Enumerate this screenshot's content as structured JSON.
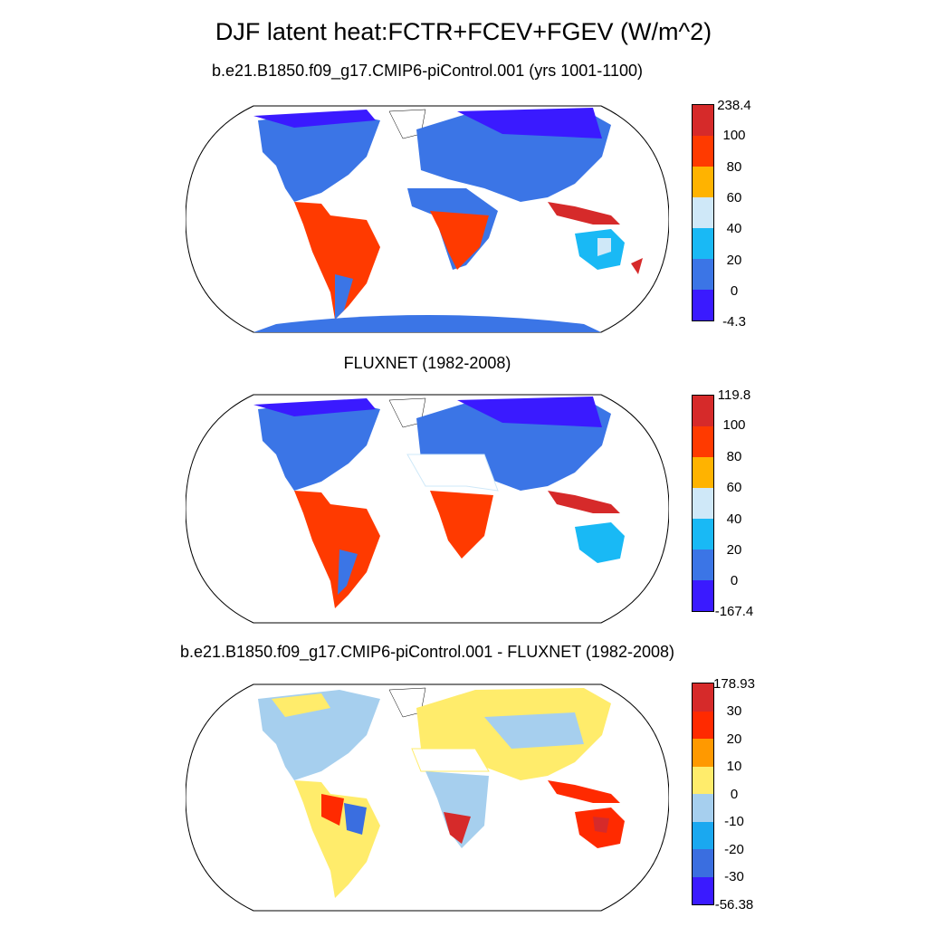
{
  "title": "DJF latent heat:FCTR+FCEV+FGEV (W/m^2)",
  "panels": [
    {
      "subtitle": "b.e21.B1850.f09_g17.CMIP6-piControl.001 (yrs 1001-1100)",
      "colorbar": {
        "labels": [
          "238.4",
          "100",
          "80",
          "60",
          "40",
          "20",
          "0",
          "-4.3"
        ],
        "colors": [
          "#d62a2a",
          "#ff3a00",
          "#ffb300",
          "#cfe8f8",
          "#19b9f5",
          "#3b75e6",
          "#3a1aff"
        ]
      }
    },
    {
      "subtitle": "FLUXNET (1982-2008)",
      "colorbar": {
        "labels": [
          "119.8",
          "100",
          "80",
          "60",
          "40",
          "20",
          "0",
          "-167.4"
        ],
        "colors": [
          "#d62a2a",
          "#ff3a00",
          "#ffb300",
          "#cfe8f8",
          "#19b9f5",
          "#3b75e6",
          "#3a1aff"
        ]
      }
    },
    {
      "subtitle": "b.e21.B1850.f09_g17.CMIP6-piControl.001 - FLUXNET (1982-2008)",
      "colorbar": {
        "labels": [
          "178.93",
          "30",
          "20",
          "10",
          "0",
          "-10",
          "-20",
          "-30",
          "-56.38"
        ],
        "colors": [
          "#d62a2a",
          "#ff2a00",
          "#ff9900",
          "#ffec6b",
          "#a6cfee",
          "#1aa8f0",
          "#3a6ee0",
          "#3a1aff"
        ]
      }
    }
  ]
}
